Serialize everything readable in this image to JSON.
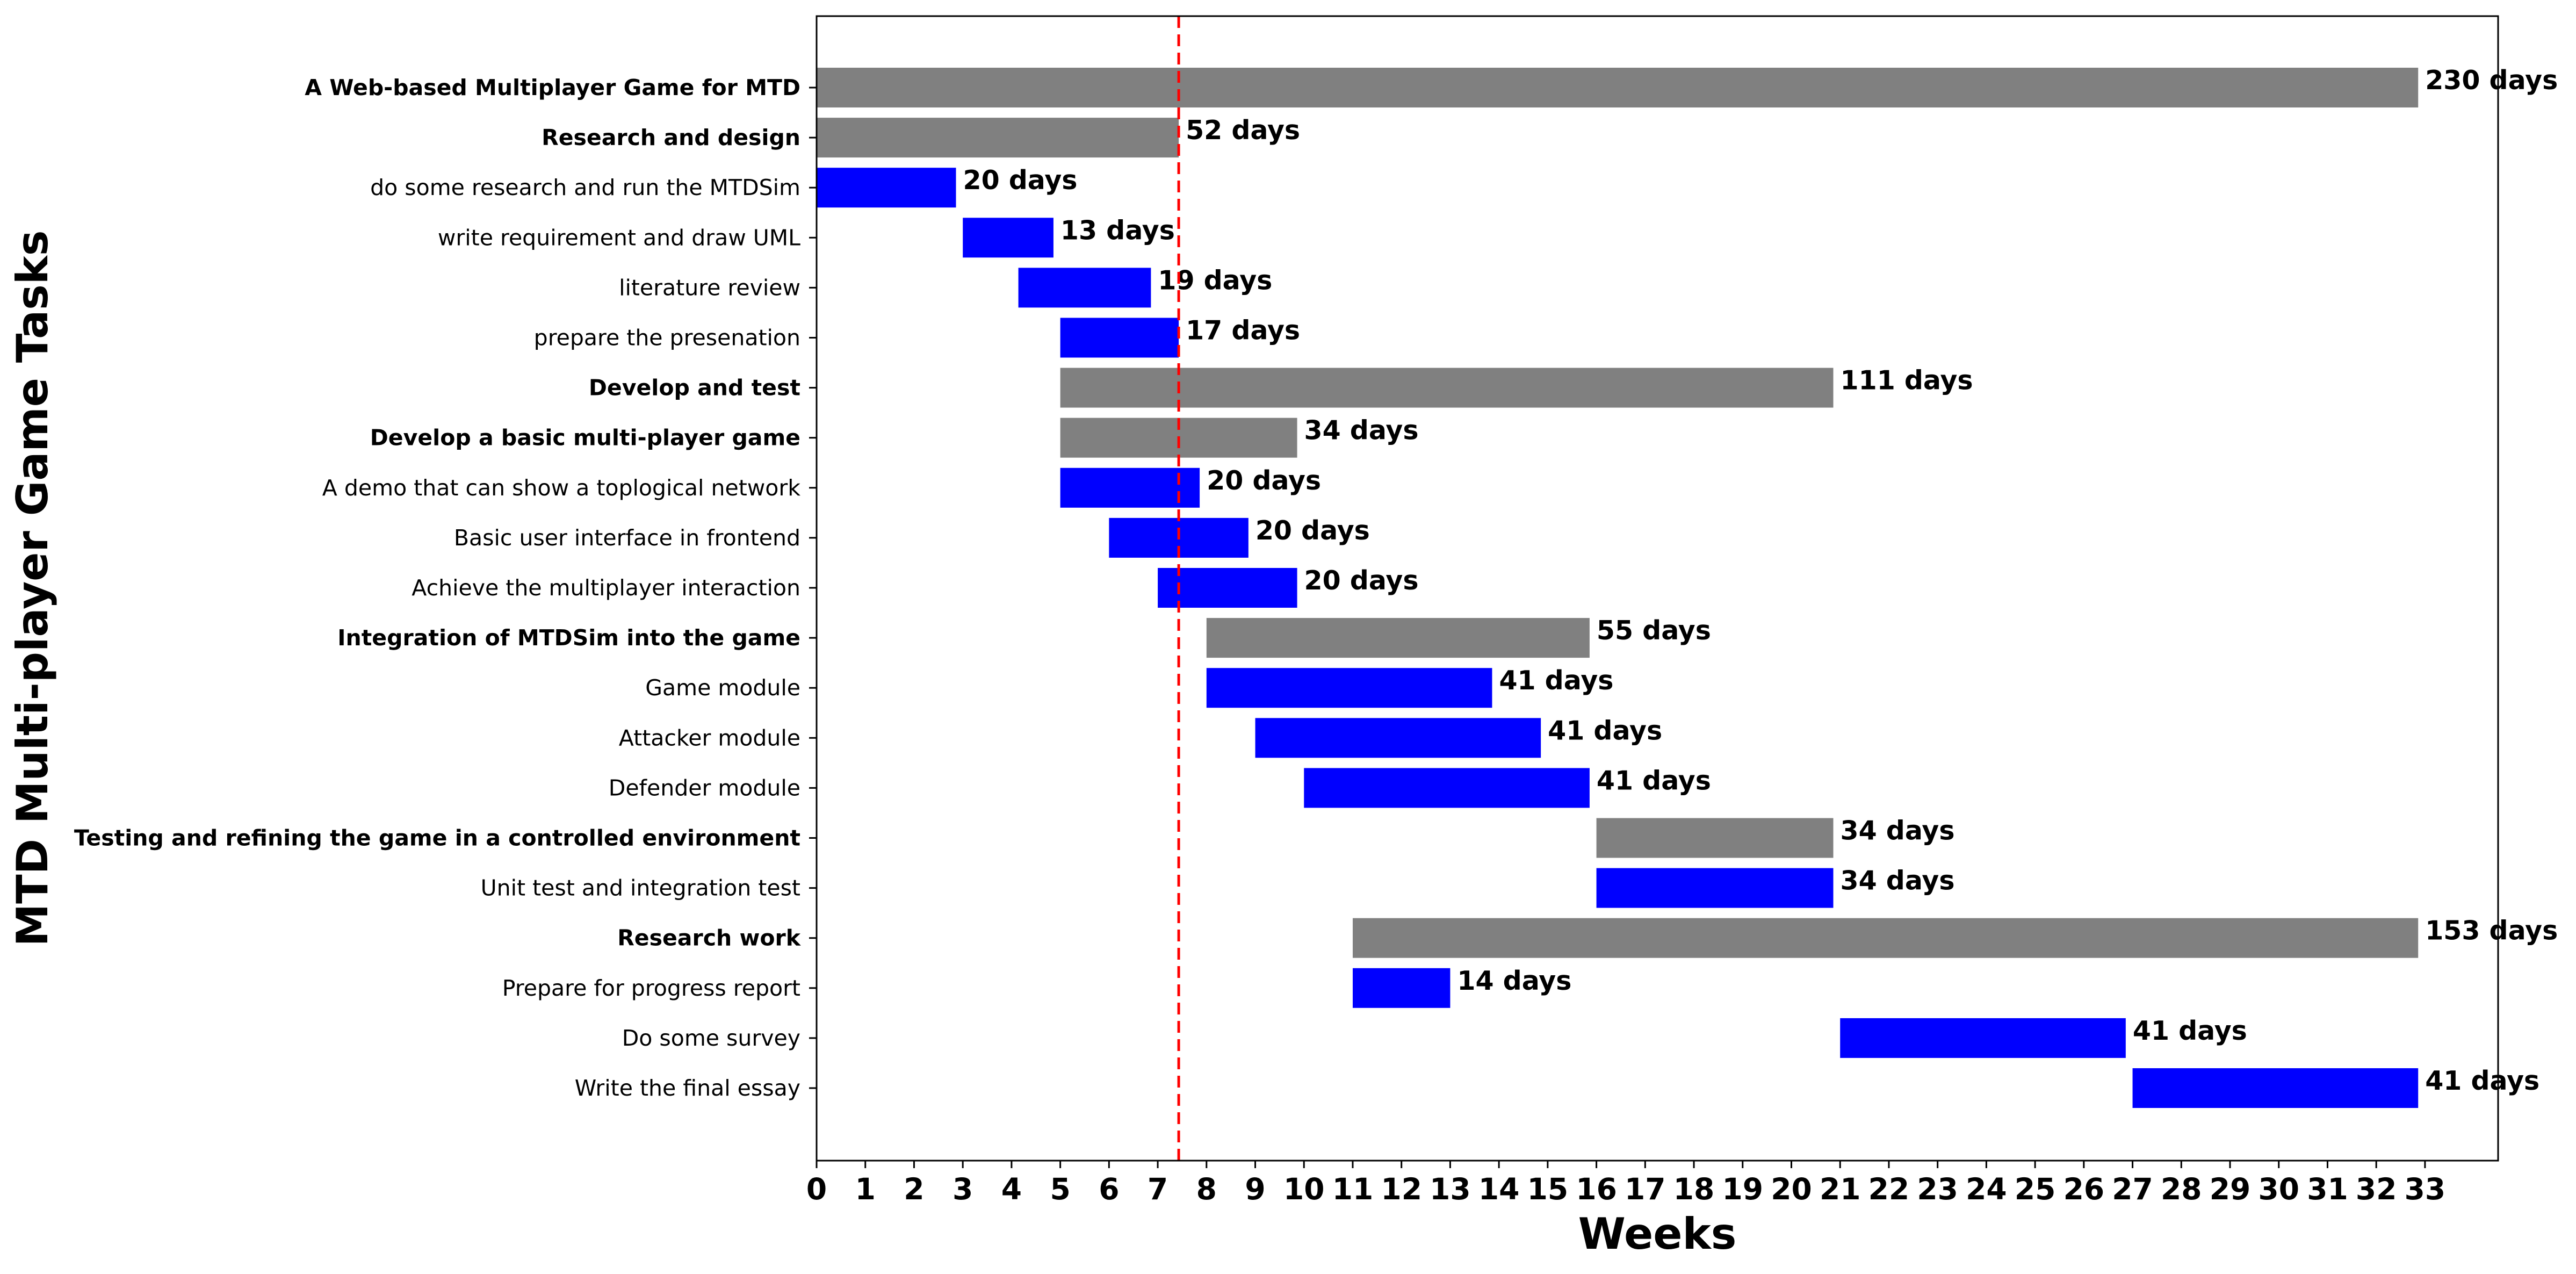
{
  "chart_data": {
    "type": "bar",
    "orientation": "horizontal",
    "xlabel": "Weeks",
    "ylabel": "MTD Multi-player Game Tasks",
    "xlim": [
      0,
      34.5
    ],
    "x_ticks": [
      0,
      1,
      2,
      3,
      4,
      5,
      6,
      7,
      8,
      9,
      10,
      11,
      12,
      13,
      14,
      15,
      16,
      17,
      18,
      19,
      20,
      21,
      22,
      23,
      24,
      25,
      26,
      27,
      28,
      29,
      30,
      31,
      32,
      33
    ],
    "current_week_marker": 7.43,
    "grid": false,
    "colors": {
      "group": "#808080",
      "task": "#0000ff",
      "marker": "#ff0000"
    },
    "tasks": [
      {
        "name": "A Web-based Multiplayer Game for MTD",
        "group": true,
        "start": 0,
        "end": 32.86,
        "label": "230 days"
      },
      {
        "name": "Research and design",
        "group": true,
        "start": 0,
        "end": 7.43,
        "label": "52 days"
      },
      {
        "name": "do some research and run the MTDSim",
        "group": false,
        "start": 0,
        "end": 2.86,
        "label": "20 days"
      },
      {
        "name": "write requirement and draw UML",
        "group": false,
        "start": 3,
        "end": 4.86,
        "label": "13 days"
      },
      {
        "name": "literature review",
        "group": false,
        "start": 4.14,
        "end": 6.86,
        "label": "19 days"
      },
      {
        "name": "prepare the presenation",
        "group": false,
        "start": 5,
        "end": 7.43,
        "label": "17 days"
      },
      {
        "name": "Develop and test",
        "group": true,
        "start": 5,
        "end": 20.86,
        "label": "111 days"
      },
      {
        "name": "Develop a basic multi-player game",
        "group": true,
        "start": 5,
        "end": 9.86,
        "label": "34 days"
      },
      {
        "name": "A demo that can show a toplogical network",
        "group": false,
        "start": 5,
        "end": 7.86,
        "label": "20 days"
      },
      {
        "name": "Basic user interface in frontend",
        "group": false,
        "start": 6,
        "end": 8.86,
        "label": "20 days"
      },
      {
        "name": "Achieve the multiplayer interaction",
        "group": false,
        "start": 7,
        "end": 9.86,
        "label": "20 days"
      },
      {
        "name": "Integration of MTDSim into the game",
        "group": true,
        "start": 8,
        "end": 15.86,
        "label": "55 days"
      },
      {
        "name": "Game module",
        "group": false,
        "start": 8,
        "end": 13.86,
        "label": "41 days"
      },
      {
        "name": "Attacker module",
        "group": false,
        "start": 9,
        "end": 14.86,
        "label": "41 days"
      },
      {
        "name": "Defender module",
        "group": false,
        "start": 10,
        "end": 15.86,
        "label": "41 days"
      },
      {
        "name": "Testing and refining the game in a controlled environment",
        "group": true,
        "start": 16,
        "end": 20.86,
        "label": "34 days"
      },
      {
        "name": "Unit test and integration test",
        "group": false,
        "start": 16,
        "end": 20.86,
        "label": "34 days"
      },
      {
        "name": "Research work",
        "group": true,
        "start": 11,
        "end": 32.86,
        "label": "153 days"
      },
      {
        "name": "Prepare for progress report",
        "group": false,
        "start": 11,
        "end": 13,
        "label": "14 days"
      },
      {
        "name": "Do some survey",
        "group": false,
        "start": 21,
        "end": 26.86,
        "label": "41 days"
      },
      {
        "name": "Write the final essay",
        "group": false,
        "start": 27,
        "end": 32.86,
        "label": "41 days"
      }
    ]
  }
}
